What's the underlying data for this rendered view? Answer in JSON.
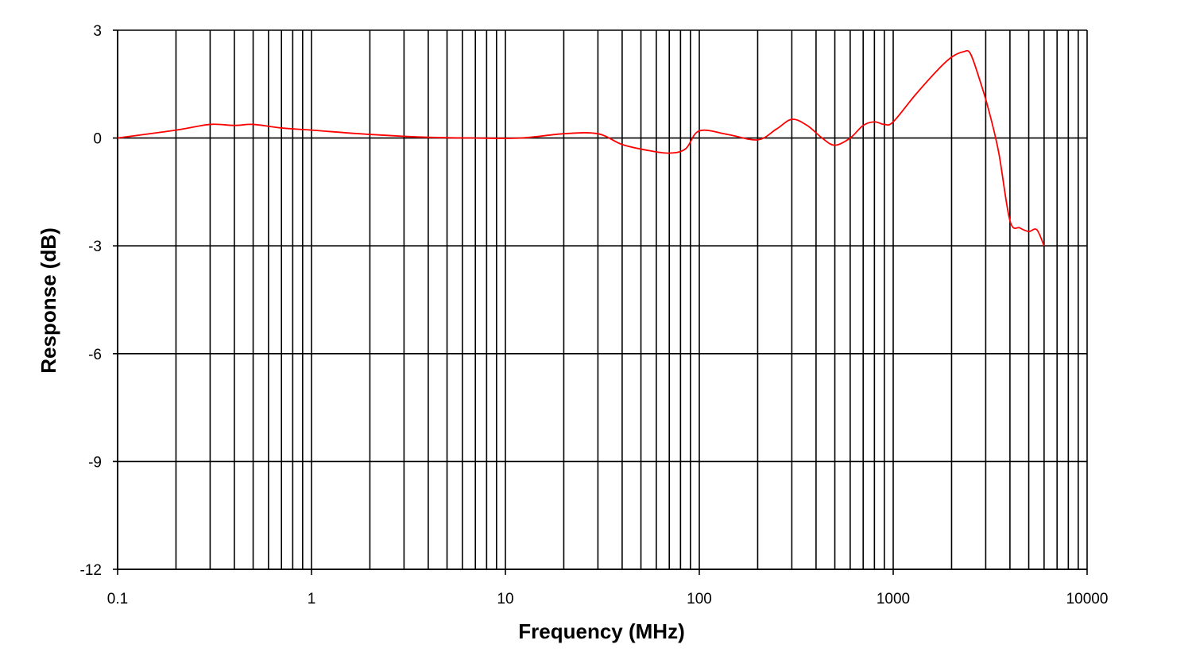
{
  "chart_data": {
    "type": "line",
    "title": "",
    "xlabel": "Frequency (MHz)",
    "ylabel": "Response (dB)",
    "x_scale": "log",
    "xlim": [
      0.1,
      10000
    ],
    "ylim": [
      -12,
      3
    ],
    "x_ticks": [
      {
        "value": 0.1,
        "label": "0.1"
      },
      {
        "value": 1,
        "label": "1"
      },
      {
        "value": 10,
        "label": "10"
      },
      {
        "value": 100,
        "label": "100"
      },
      {
        "value": 1000,
        "label": "1000"
      },
      {
        "value": 10000,
        "label": "10000"
      }
    ],
    "y_ticks": [
      {
        "value": 3,
        "label": "3"
      },
      {
        "value": 0,
        "label": "0"
      },
      {
        "value": -3,
        "label": "-3"
      },
      {
        "value": -6,
        "label": "-6"
      },
      {
        "value": -9,
        "label": "-9"
      },
      {
        "value": -12,
        "label": "-12"
      }
    ],
    "grid": true,
    "legend": "none",
    "series": [
      {
        "color": "#ff0000",
        "x": [
          0.1,
          0.2,
          0.3,
          0.4,
          0.5,
          0.7,
          1,
          2,
          4,
          7,
          12,
          20,
          30,
          40,
          55,
          70,
          85,
          100,
          140,
          200,
          250,
          300,
          360,
          430,
          500,
          600,
          700,
          800,
          900,
          1000,
          1300,
          1700,
          2000,
          2300,
          2500,
          2800,
          3100,
          3500,
          4000,
          4500,
          5000,
          5500,
          6000
        ],
        "y": [
          0.0,
          0.22,
          0.38,
          0.35,
          0.38,
          0.28,
          0.22,
          0.1,
          0.02,
          0.0,
          0.0,
          0.12,
          0.12,
          -0.18,
          -0.35,
          -0.42,
          -0.3,
          0.2,
          0.1,
          -0.05,
          0.25,
          0.52,
          0.35,
          0.0,
          -0.2,
          0.0,
          0.35,
          0.45,
          0.38,
          0.45,
          1.2,
          1.9,
          2.25,
          2.4,
          2.35,
          1.6,
          0.8,
          -0.4,
          -2.3,
          -2.5,
          -2.6,
          -2.55,
          -3.0
        ]
      }
    ]
  }
}
